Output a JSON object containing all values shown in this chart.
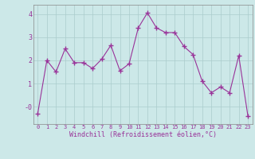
{
  "x": [
    0,
    1,
    2,
    3,
    4,
    5,
    6,
    7,
    8,
    9,
    10,
    11,
    12,
    13,
    14,
    15,
    16,
    17,
    18,
    19,
    20,
    21,
    22,
    23
  ],
  "y": [
    -0.3,
    2.0,
    1.5,
    2.5,
    1.9,
    1.9,
    1.65,
    2.05,
    2.65,
    1.55,
    1.85,
    3.4,
    4.05,
    3.4,
    3.2,
    3.2,
    2.6,
    2.25,
    1.1,
    0.6,
    0.85,
    0.6,
    2.2,
    -0.4
  ],
  "line_color": "#993399",
  "marker": "+",
  "marker_size": 4,
  "bg_color": "#cce8e8",
  "grid_color": "#aacccc",
  "xlabel": "Windchill (Refroidissement éolien,°C)",
  "xlabel_color": "#993399",
  "tick_color": "#993399",
  "ylim": [
    -0.75,
    4.4
  ],
  "xlim": [
    -0.5,
    23.5
  ]
}
